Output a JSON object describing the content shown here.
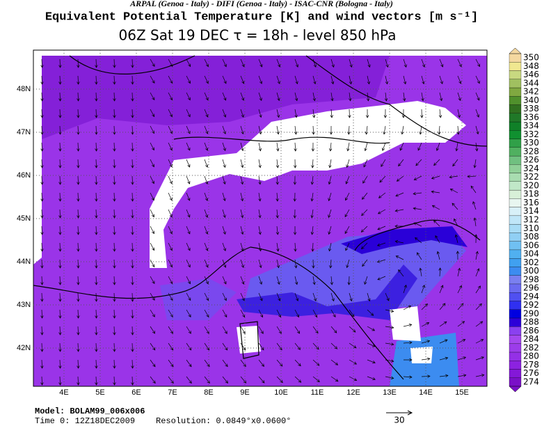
{
  "header": {
    "credits": "ARPAL (Genoa - Italy)  -  DIFI (Genoa - Italy)  -  ISAC-CNR (Bologna - Italy)",
    "title": "Equivalent Potential Temperature [K] and wind vectors [m s⁻¹]",
    "subtitle": "06Z Sat 19 DEC   τ = 18h   -   level 850 hPa"
  },
  "map": {
    "lat_labels": [
      "48N",
      "47N",
      "46N",
      "45N",
      "44N",
      "43N",
      "42N"
    ],
    "lon_labels": [
      "4E",
      "5E",
      "6E",
      "7E",
      "8E",
      "9E",
      "10E",
      "11E",
      "12E",
      "13E",
      "14E",
      "15E"
    ]
  },
  "colorbar": {
    "levels": [
      274,
      276,
      278,
      280,
      282,
      284,
      286,
      288,
      290,
      292,
      294,
      296,
      298,
      300,
      302,
      304,
      306,
      308,
      310,
      312,
      314,
      316,
      318,
      320,
      322,
      324,
      326,
      328,
      330,
      332,
      334,
      336,
      338,
      340,
      342,
      344,
      346,
      348,
      350
    ],
    "colors": [
      "#7a10c8",
      "#8418d8",
      "#8c22e0",
      "#9430e6",
      "#9c3cea",
      "#a448ee",
      "#8a40f0",
      "#2c00d8",
      "#0000e0",
      "#3030f0",
      "#5050f0",
      "#6a6af0",
      "#7a80f0",
      "#3c8cf0",
      "#40a0f0",
      "#50b0f0",
      "#70c0f2",
      "#90cff4",
      "#a8dcf6",
      "#c0e6f8",
      "#d8f0f8",
      "#e8f6f0",
      "#d8f0d8",
      "#c0e8c8",
      "#a8dcb0",
      "#90d098",
      "#70c080",
      "#50b060",
      "#30a048",
      "#109030",
      "#108028",
      "#207828",
      "#307020",
      "#50902c",
      "#80a840",
      "#a0c060",
      "#c8d880",
      "#f0e890",
      "#f4d8a0"
    ]
  },
  "footer": {
    "model": "Model: BOLAM99_006x006",
    "time": "Time 0: 12Z18DEC2009",
    "resolution": "Resolution: 0.0849°x0.0600°",
    "scale": "30"
  }
}
